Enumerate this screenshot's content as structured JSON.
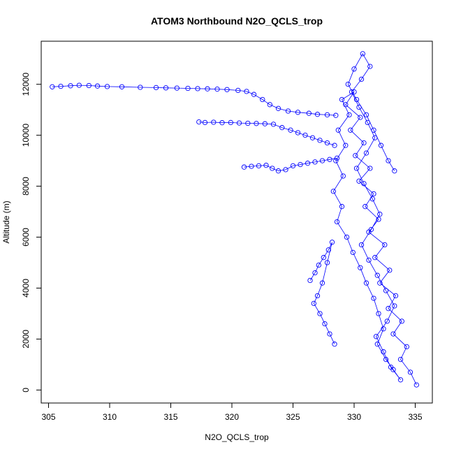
{
  "chart_data": {
    "type": "scatter",
    "title": "ATOM3 Northbound N2O_QCLS_trop",
    "xlabel": "N2O_QCLS_trop",
    "ylabel": "Altitude (m)",
    "xlim": [
      304.4,
      336.4
    ],
    "ylim": [
      -510,
      13690
    ],
    "xticks": [
      305,
      310,
      315,
      320,
      325,
      330,
      335
    ],
    "yticks": [
      0,
      2000,
      4000,
      6000,
      8000,
      10000,
      12000
    ],
    "grid": false,
    "marker": "open-circle",
    "connected": true,
    "color": "#0000ff",
    "series": [
      {
        "x": [
          335.1,
          334.6,
          333.8,
          334.3,
          333.2,
          333.9,
          332.8,
          333.4,
          332.1,
          332.9,
          331.7,
          332.5,
          331.2,
          332.0,
          330.9,
          331.6,
          330.4,
          331.3,
          330.1,
          330.8,
          329.7,
          330.5,
          329.3,
          330.0,
          329.0,
          329.6,
          328.7,
          329.3,
          328.5,
          329.1,
          328.3,
          329.0,
          328.6,
          329.4,
          329.9,
          330.5,
          331.0,
          331.6,
          332.0,
          332.4,
          331.9,
          332.6,
          333.2,
          333.8,
          333.0,
          332.4,
          331.8,
          332.7,
          333.3,
          332.6,
          331.9,
          331.2,
          330.6,
          331.4,
          332.1,
          331.5,
          330.8,
          330.2,
          331.0,
          331.7,
          331.1,
          330.4,
          329.8,
          330.6,
          331.3,
          330.7,
          330.0,
          329.5,
          330.2,
          331.0,
          331.6,
          332.2,
          332.8,
          333.3
        ],
        "y": [
          200,
          700,
          1200,
          1700,
          2200,
          2700,
          3200,
          3700,
          4200,
          4700,
          5200,
          5700,
          6200,
          6700,
          7200,
          7700,
          8200,
          8700,
          9200,
          9700,
          10200,
          10700,
          11200,
          11700,
          11400,
          10800,
          10200,
          9600,
          9000,
          8400,
          7800,
          7200,
          6600,
          6000,
          5400,
          4800,
          4200,
          3600,
          3000,
          2400,
          1800,
          1200,
          800,
          400,
          900,
          1500,
          2100,
          2700,
          3300,
          3900,
          4500,
          5100,
          5700,
          6300,
          6900,
          7500,
          8100,
          8700,
          9300,
          9900,
          10500,
          11100,
          11700,
          12200,
          12700,
          13200,
          12600,
          12000,
          11400,
          10800,
          10200,
          9600,
          9000,
          8600
        ]
      },
      {
        "x": [
          305.3,
          306.0,
          306.8,
          307.5,
          308.3,
          309.0,
          309.8,
          311.0,
          312.5,
          313.8,
          314.6,
          315.5,
          316.4,
          317.2,
          318.0,
          318.8,
          319.6,
          320.5,
          321.2,
          321.8,
          322.5,
          323.1,
          323.8,
          324.6,
          325.4,
          326.3,
          327.0,
          327.8,
          328.5
        ],
        "y": [
          11900,
          11920,
          11940,
          11960,
          11950,
          11930,
          11910,
          11900,
          11880,
          11870,
          11860,
          11850,
          11840,
          11830,
          11820,
          11810,
          11790,
          11760,
          11720,
          11600,
          11400,
          11200,
          11050,
          10950,
          10900,
          10860,
          10820,
          10800,
          10780
        ]
      },
      {
        "x": [
          317.3,
          317.8,
          318.5,
          319.2,
          319.9,
          320.6,
          321.3,
          322.0,
          322.7,
          323.4,
          324.1,
          324.8,
          325.4,
          326.0,
          326.6,
          327.2,
          327.8,
          328.4
        ],
        "y": [
          10520,
          10500,
          10510,
          10490,
          10500,
          10480,
          10470,
          10460,
          10450,
          10430,
          10300,
          10200,
          10100,
          10000,
          9900,
          9800,
          9700,
          9600
        ]
      },
      {
        "x": [
          321.0,
          321.6,
          322.2,
          322.8,
          323.3,
          323.8,
          324.4,
          325.0,
          325.6,
          326.2,
          326.8,
          327.4,
          328.0,
          328.6
        ],
        "y": [
          8750,
          8780,
          8800,
          8820,
          8700,
          8600,
          8650,
          8800,
          8850,
          8900,
          8950,
          9000,
          9050,
          9100
        ]
      },
      {
        "x": [
          326.4,
          326.8,
          327.1,
          327.5,
          327.9,
          328.2,
          327.8,
          327.4,
          327.0,
          326.7,
          327.2,
          327.6,
          328.0,
          328.4
        ],
        "y": [
          4300,
          4600,
          4900,
          5200,
          5500,
          5800,
          5000,
          4200,
          3700,
          3400,
          3000,
          2600,
          2200,
          1800
        ]
      }
    ]
  }
}
